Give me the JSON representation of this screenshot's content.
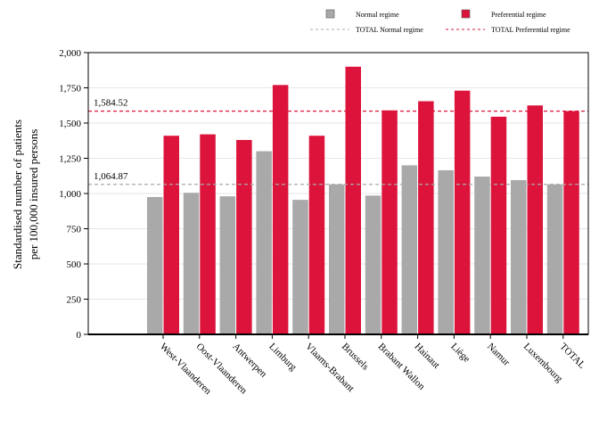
{
  "chart_data": {
    "type": "bar",
    "ylabel_lines": [
      "Standardised number of patients",
      "per 100,000 insured persons"
    ],
    "ylim": [
      0,
      2000
    ],
    "yticks": [
      0,
      250,
      500,
      750,
      1000,
      1250,
      1500,
      1750,
      2000
    ],
    "ytick_labels": [
      "0",
      "250",
      "500",
      "750",
      "1,000",
      "1,250",
      "1,500",
      "1,750",
      "2,000"
    ],
    "grid": true,
    "legend_position": "top",
    "categories": [
      "West-Vlaanderen",
      "Oost-Vlaanderen",
      "Antwerpen",
      "Limburg",
      "Vlaams-Brabant",
      "Brussels",
      "Brabant Wallon",
      "Hainaut",
      "Liège",
      "Namur",
      "Luxembourg",
      "TOTAL"
    ],
    "series": [
      {
        "name": "Normal regime",
        "color": "#a9a9a9",
        "values": [
          975,
          1005,
          980,
          1300,
          955,
          1065,
          985,
          1200,
          1165,
          1120,
          1095,
          1065
        ]
      },
      {
        "name": "Preferential regime",
        "color": "#dc143c",
        "values": [
          1410,
          1420,
          1380,
          1770,
          1410,
          1900,
          1590,
          1655,
          1730,
          1545,
          1625,
          1585
        ]
      }
    ],
    "reference_lines": [
      {
        "name": "TOTAL Normal regime",
        "value": 1064.87,
        "label": "1,064.87",
        "color": "#a9a9a9"
      },
      {
        "name": "TOTAL Preferential regime",
        "value": 1584.52,
        "label": "1,584.52",
        "color": "#dc143c"
      }
    ]
  }
}
